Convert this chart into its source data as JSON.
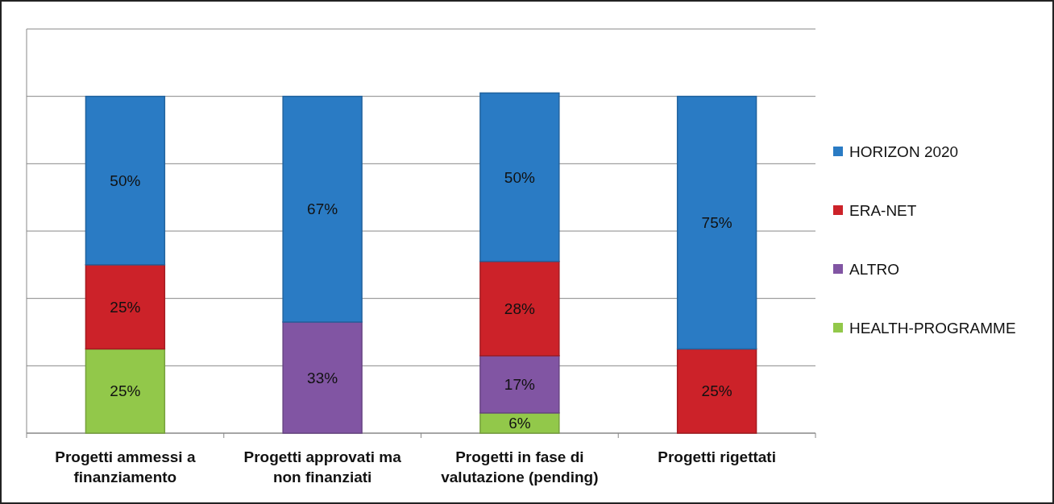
{
  "chart_data": {
    "type": "bar",
    "stacked": true,
    "categories": [
      "Progetti ammessi a finanziamento",
      "Progetti approvati ma non finanziati",
      "Progetti in fase di valutazione (pending)",
      "Progetti rigettati"
    ],
    "series": [
      {
        "name": "HEALTH-PROGRAMME",
        "color": "#92c84a",
        "values": [
          25,
          null,
          6,
          null
        ],
        "value_labels": [
          "25%",
          null,
          "6%",
          null
        ]
      },
      {
        "name": "ALTRO",
        "color": "#8155a3",
        "values": [
          null,
          33,
          17,
          null
        ],
        "value_labels": [
          null,
          "33%",
          "17%",
          null
        ]
      },
      {
        "name": "ERA-NET",
        "color": "#cc2229",
        "values": [
          25,
          null,
          28,
          25
        ],
        "value_labels": [
          "25%",
          null,
          "28%",
          "25%"
        ]
      },
      {
        "name": "HORIZON 2020",
        "color": "#2a7bc4",
        "values": [
          50,
          67,
          50,
          75
        ],
        "value_labels": [
          "50%",
          "67%",
          "50%",
          "75%"
        ]
      }
    ],
    "ylim": [
      0,
      120
    ],
    "yticks": [
      {
        "value": 0,
        "label": null
      },
      {
        "value": 20,
        "label": null
      },
      {
        "value": 40,
        "label": null
      },
      {
        "value": 60,
        "label": null
      },
      {
        "value": 80,
        "label": null
      },
      {
        "value": 100,
        "label": null
      },
      {
        "value": 120,
        "label": null
      }
    ],
    "grid": "y",
    "tick_labels": "x",
    "legend": "right"
  }
}
